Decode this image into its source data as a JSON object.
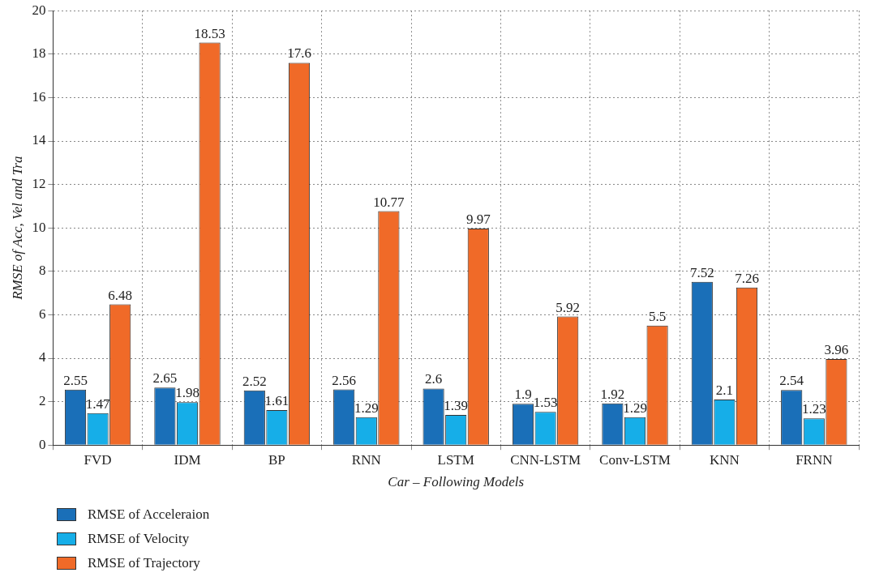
{
  "chart_data": {
    "type": "bar",
    "xlabel": "Car – Following Models",
    "ylabel": "RMSE of Acc, Vel and Tra",
    "categories": [
      "FVD",
      "IDM",
      "BP",
      "RNN",
      "LSTM",
      "CNN-LSTM",
      "Conv-LSTM",
      "KNN",
      "FRNN"
    ],
    "series": [
      {
        "name": "RMSE of Acceleraion",
        "color": "#1a6fb8",
        "values": [
          2.55,
          2.65,
          2.52,
          2.56,
          2.6,
          1.9,
          1.92,
          7.52,
          2.54
        ]
      },
      {
        "name": "RMSE of Velocity",
        "color": "#16aee8",
        "values": [
          1.47,
          1.98,
          1.61,
          1.29,
          1.39,
          1.53,
          1.29,
          2.1,
          1.23
        ]
      },
      {
        "name": "RMSE of Trajectory",
        "color": "#f06a28",
        "values": [
          6.48,
          18.53,
          17.6,
          10.77,
          9.97,
          5.92,
          5.5,
          7.26,
          3.96
        ]
      }
    ],
    "ylim": [
      0,
      20
    ],
    "yticks": [
      0,
      2,
      4,
      6,
      8,
      10,
      12,
      14,
      16,
      18,
      20
    ],
    "grid": true,
    "line_style": "dotted",
    "legend": "bottom left",
    "data_labels": true
  }
}
